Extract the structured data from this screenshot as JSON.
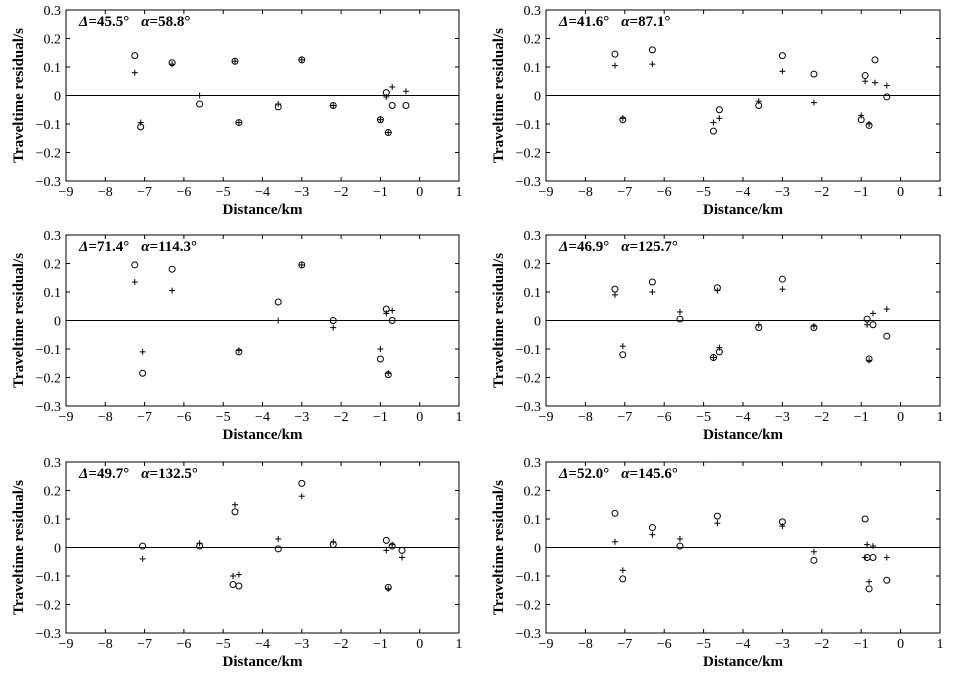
{
  "chart_data": [
    {
      "type": "scatter",
      "title": "",
      "annotation": {
        "delta_symbol": "Δ",
        "delta_value": "=45.5°",
        "alpha_symbol": "α",
        "alpha_value": "=58.8°"
      },
      "xlabel": "Distance/km",
      "ylabel": "Traveltime residual/s",
      "xlim": [
        -9,
        1
      ],
      "ylim": [
        -0.3,
        0.3
      ],
      "xticks": [
        "−9",
        "−8",
        "−7",
        "−6",
        "−5",
        "−4",
        "−3",
        "−2",
        "−1",
        "0",
        "1"
      ],
      "yticks": [
        "0.3",
        "0.2",
        "0.1",
        "0",
        "−0.1",
        "−0.2",
        "−0.3"
      ],
      "zero_line": true,
      "grid": false,
      "series": [
        {
          "marker": "circle",
          "points": [
            [
              -7.25,
              0.14
            ],
            [
              -7.1,
              -0.11
            ],
            [
              -6.3,
              0.115
            ],
            [
              -5.6,
              -0.03
            ],
            [
              -4.7,
              0.12
            ],
            [
              -4.6,
              -0.095
            ],
            [
              -3.6,
              -0.04
            ],
            [
              -3.0,
              0.125
            ],
            [
              -2.2,
              -0.035
            ],
            [
              -1.0,
              -0.085
            ],
            [
              -0.85,
              0.01
            ],
            [
              -0.8,
              -0.13
            ],
            [
              -0.7,
              -0.035
            ],
            [
              -0.35,
              -0.035
            ]
          ]
        },
        {
          "marker": "plus",
          "points": [
            [
              -7.25,
              0.08
            ],
            [
              -7.1,
              -0.095
            ],
            [
              -6.3,
              0.11
            ],
            [
              -5.6,
              0.0
            ],
            [
              -4.7,
              0.12
            ],
            [
              -4.6,
              -0.095
            ],
            [
              -3.6,
              -0.03
            ],
            [
              -3.0,
              0.125
            ],
            [
              -2.2,
              -0.035
            ],
            [
              -1.0,
              -0.085
            ],
            [
              -0.85,
              -0.005
            ],
            [
              -0.8,
              -0.13
            ],
            [
              -0.7,
              0.03
            ],
            [
              -0.35,
              0.015
            ]
          ]
        }
      ]
    },
    {
      "type": "scatter",
      "title": "",
      "annotation": {
        "delta_symbol": "Δ",
        "delta_value": "=41.6°",
        "alpha_symbol": "α",
        "alpha_value": "=87.1°"
      },
      "xlabel": "Distance/km",
      "ylabel": "Traveltime residual/s",
      "xlim": [
        -9,
        1
      ],
      "ylim": [
        -0.3,
        0.3
      ],
      "xticks": [
        "−9",
        "−8",
        "−7",
        "−6",
        "−5",
        "−4",
        "−3",
        "−2",
        "−1",
        "0",
        "1"
      ],
      "yticks": [
        "0.3",
        "0.2",
        "0.1",
        "0",
        "−0.1",
        "−0.2",
        "−0.3"
      ],
      "zero_line": true,
      "grid": false,
      "series": [
        {
          "marker": "circle",
          "points": [
            [
              -7.25,
              0.145
            ],
            [
              -7.05,
              -0.085
            ],
            [
              -6.3,
              0.16
            ],
            [
              -4.75,
              -0.125
            ],
            [
              -4.6,
              -0.05
            ],
            [
              -3.6,
              -0.035
            ],
            [
              -3.0,
              0.14
            ],
            [
              -2.2,
              0.075
            ],
            [
              -0.9,
              0.07
            ],
            [
              -1.0,
              -0.085
            ],
            [
              -0.8,
              -0.105
            ],
            [
              -0.65,
              0.125
            ],
            [
              -0.35,
              -0.005
            ]
          ]
        },
        {
          "marker": "plus",
          "points": [
            [
              -7.25,
              0.105
            ],
            [
              -7.05,
              -0.08
            ],
            [
              -6.3,
              0.11
            ],
            [
              -4.75,
              -0.095
            ],
            [
              -4.6,
              -0.08
            ],
            [
              -3.6,
              -0.02
            ],
            [
              -3.0,
              0.085
            ],
            [
              -2.2,
              -0.025
            ],
            [
              -0.9,
              0.05
            ],
            [
              -1.0,
              -0.07
            ],
            [
              -0.8,
              -0.1
            ],
            [
              -0.65,
              0.045
            ],
            [
              -0.35,
              0.035
            ]
          ]
        }
      ]
    },
    {
      "type": "scatter",
      "title": "",
      "annotation": {
        "delta_symbol": "Δ",
        "delta_value": "=71.4°",
        "alpha_symbol": "α",
        "alpha_value": "=114.3°"
      },
      "xlabel": "Distance/km",
      "ylabel": "Traveltime residual/s",
      "xlim": [
        -9,
        1
      ],
      "ylim": [
        -0.3,
        0.3
      ],
      "xticks": [
        "−9",
        "−8",
        "−7",
        "−6",
        "−5",
        "−4",
        "−3",
        "−2",
        "−1",
        "0",
        "1"
      ],
      "yticks": [
        "0.3",
        "0.2",
        "0.1",
        "0",
        "−0.1",
        "−0.2",
        "−0.3"
      ],
      "zero_line": true,
      "grid": false,
      "series": [
        {
          "marker": "circle",
          "points": [
            [
              -7.25,
              0.195
            ],
            [
              -7.05,
              -0.185
            ],
            [
              -6.3,
              0.18
            ],
            [
              -4.6,
              -0.11
            ],
            [
              -3.6,
              0.065
            ],
            [
              -3.0,
              0.195
            ],
            [
              -2.2,
              0.0
            ],
            [
              -1.0,
              -0.135
            ],
            [
              -0.85,
              0.04
            ],
            [
              -0.8,
              -0.19
            ],
            [
              -0.7,
              0.0
            ]
          ]
        },
        {
          "marker": "plus",
          "points": [
            [
              -7.25,
              0.135
            ],
            [
              -7.05,
              -0.11
            ],
            [
              -6.3,
              0.105
            ],
            [
              -4.6,
              -0.105
            ],
            [
              -3.6,
              0.0
            ],
            [
              -3.0,
              0.195
            ],
            [
              -2.2,
              -0.025
            ],
            [
              -1.0,
              -0.1
            ],
            [
              -0.85,
              0.025
            ],
            [
              -0.8,
              -0.185
            ],
            [
              -0.7,
              0.035
            ]
          ]
        }
      ]
    },
    {
      "type": "scatter",
      "title": "",
      "annotation": {
        "delta_symbol": "Δ",
        "delta_value": "=46.9°",
        "alpha_symbol": "α",
        "alpha_value": "=125.7°"
      },
      "xlabel": "Distance/km",
      "ylabel": "Traveltime residual/s",
      "xlim": [
        -9,
        1
      ],
      "ylim": [
        -0.3,
        0.3
      ],
      "xticks": [
        "−9",
        "−8",
        "−7",
        "−6",
        "−5",
        "−4",
        "−3",
        "−2",
        "−1",
        "0",
        "1"
      ],
      "yticks": [
        "0.3",
        "0.2",
        "0.1",
        "0",
        "−0.1",
        "−0.2",
        "−0.3"
      ],
      "zero_line": true,
      "grid": false,
      "series": [
        {
          "marker": "circle",
          "points": [
            [
              -7.25,
              0.11
            ],
            [
              -7.05,
              -0.12
            ],
            [
              -6.3,
              0.135
            ],
            [
              -5.6,
              0.005
            ],
            [
              -4.75,
              -0.13
            ],
            [
              -4.6,
              -0.11
            ],
            [
              -4.65,
              0.115
            ],
            [
              -3.6,
              -0.025
            ],
            [
              -3.0,
              0.145
            ],
            [
              -2.2,
              -0.025
            ],
            [
              -0.85,
              0.005
            ],
            [
              -0.8,
              -0.135
            ],
            [
              -0.7,
              -0.015
            ],
            [
              -0.35,
              -0.055
            ]
          ]
        },
        {
          "marker": "plus",
          "points": [
            [
              -7.25,
              0.09
            ],
            [
              -7.05,
              -0.09
            ],
            [
              -6.3,
              0.1
            ],
            [
              -5.6,
              0.03
            ],
            [
              -4.75,
              -0.13
            ],
            [
              -4.6,
              -0.095
            ],
            [
              -4.65,
              0.105
            ],
            [
              -3.6,
              -0.015
            ],
            [
              -3.0,
              0.11
            ],
            [
              -2.2,
              -0.02
            ],
            [
              -0.85,
              -0.015
            ],
            [
              -0.8,
              -0.14
            ],
            [
              -0.7,
              0.025
            ],
            [
              -0.35,
              0.04
            ]
          ]
        }
      ]
    },
    {
      "type": "scatter",
      "title": "",
      "annotation": {
        "delta_symbol": "Δ",
        "delta_value": "=49.7°",
        "alpha_symbol": "α",
        "alpha_value": "=132.5°"
      },
      "xlabel": "Distance/km",
      "ylabel": "Traveltime residual/s",
      "xlim": [
        -9,
        1
      ],
      "ylim": [
        -0.3,
        0.3
      ],
      "xticks": [
        "−9",
        "−8",
        "−7",
        "−6",
        "−5",
        "−4",
        "−3",
        "−2",
        "−1",
        "0",
        "1"
      ],
      "yticks": [
        "0.3",
        "0.2",
        "0.1",
        "0",
        "−0.1",
        "−0.2",
        "−0.3"
      ],
      "zero_line": true,
      "grid": false,
      "series": [
        {
          "marker": "circle",
          "points": [
            [
              -7.05,
              0.005
            ],
            [
              -5.6,
              0.005
            ],
            [
              -4.75,
              -0.13
            ],
            [
              -4.6,
              -0.135
            ],
            [
              -4.7,
              0.125
            ],
            [
              -3.6,
              -0.005
            ],
            [
              -3.0,
              0.225
            ],
            [
              -2.2,
              0.01
            ],
            [
              -0.85,
              0.025
            ],
            [
              -0.8,
              -0.14
            ],
            [
              -0.7,
              0.005
            ],
            [
              -0.45,
              -0.01
            ]
          ]
        },
        {
          "marker": "plus",
          "points": [
            [
              -7.05,
              -0.04
            ],
            [
              -5.6,
              0.015
            ],
            [
              -4.75,
              -0.1
            ],
            [
              -4.6,
              -0.095
            ],
            [
              -4.7,
              0.15
            ],
            [
              -3.6,
              0.03
            ],
            [
              -3.0,
              0.18
            ],
            [
              -2.2,
              0.02
            ],
            [
              -0.85,
              -0.01
            ],
            [
              -0.8,
              -0.145
            ],
            [
              -0.7,
              0.01
            ],
            [
              -0.45,
              -0.035
            ]
          ]
        }
      ]
    },
    {
      "type": "scatter",
      "title": "",
      "annotation": {
        "delta_symbol": "Δ",
        "delta_value": "=52.0°",
        "alpha_symbol": "α",
        "alpha_value": "=145.6°"
      },
      "xlabel": "Distance/km",
      "ylabel": "Traveltime residual/s",
      "xlim": [
        -9,
        1
      ],
      "ylim": [
        -0.3,
        0.3
      ],
      "xticks": [
        "−9",
        "−8",
        "−7",
        "−6",
        "−5",
        "−4",
        "−3",
        "−2",
        "−1",
        "0",
        "1"
      ],
      "yticks": [
        "0.3",
        "0.2",
        "0.1",
        "0",
        "−0.1",
        "−0.2",
        "−0.3"
      ],
      "zero_line": true,
      "grid": false,
      "series": [
        {
          "marker": "circle",
          "points": [
            [
              -7.25,
              0.12
            ],
            [
              -7.05,
              -0.11
            ],
            [
              -6.3,
              0.07
            ],
            [
              -5.6,
              0.005
            ],
            [
              -4.65,
              0.11
            ],
            [
              -3.0,
              0.09
            ],
            [
              -2.2,
              -0.045
            ],
            [
              -0.9,
              0.1
            ],
            [
              -0.85,
              -0.035
            ],
            [
              -0.8,
              -0.145
            ],
            [
              -0.7,
              -0.035
            ],
            [
              -0.35,
              -0.115
            ]
          ]
        },
        {
          "marker": "plus",
          "points": [
            [
              -7.25,
              0.02
            ],
            [
              -7.05,
              -0.08
            ],
            [
              -6.3,
              0.045
            ],
            [
              -5.6,
              0.03
            ],
            [
              -4.65,
              0.085
            ],
            [
              -3.0,
              0.075
            ],
            [
              -2.2,
              -0.015
            ],
            [
              -0.9,
              -0.035
            ],
            [
              -0.85,
              0.01
            ],
            [
              -0.8,
              -0.12
            ],
            [
              -0.7,
              0.005
            ],
            [
              -0.35,
              -0.035
            ]
          ]
        }
      ]
    }
  ]
}
